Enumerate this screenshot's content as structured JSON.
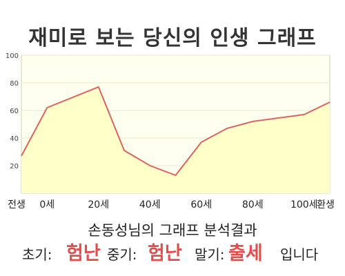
{
  "title": "재미로 보는 당신의 인생 그래프",
  "chart_data": {
    "type": "area",
    "x": [
      -10,
      0,
      20,
      30,
      40,
      50,
      60,
      70,
      80,
      100,
      110
    ],
    "values": [
      27,
      62,
      77,
      31,
      20,
      13,
      37,
      47,
      52,
      57,
      66
    ],
    "xticks": [
      {
        "label": "전생",
        "value": -10
      },
      {
        "label": "0세",
        "value": 0
      },
      {
        "label": "20세",
        "value": 20
      },
      {
        "label": "40세",
        "value": 40
      },
      {
        "label": "60세",
        "value": 60
      },
      {
        "label": "80세",
        "value": 80
      },
      {
        "label": "100세",
        "value": 100
      },
      {
        "label": "환생",
        "value": 110
      }
    ],
    "yticks": [
      20,
      40,
      60,
      80,
      100
    ],
    "ylim": [
      0,
      100
    ],
    "grid": true,
    "colors": {
      "line": "#e06060",
      "fill": "#ffffc8",
      "plot_bg": "#fffff0",
      "grid": "#e4e4cc"
    }
  },
  "result": {
    "heading": "손동성님의 그래프 분석결과",
    "early_label": "초기:",
    "early_value": "험난",
    "middle_label": "중기:",
    "middle_value": "험난",
    "late_label": "말기:",
    "late_value": "출세",
    "ending": "입니다"
  }
}
